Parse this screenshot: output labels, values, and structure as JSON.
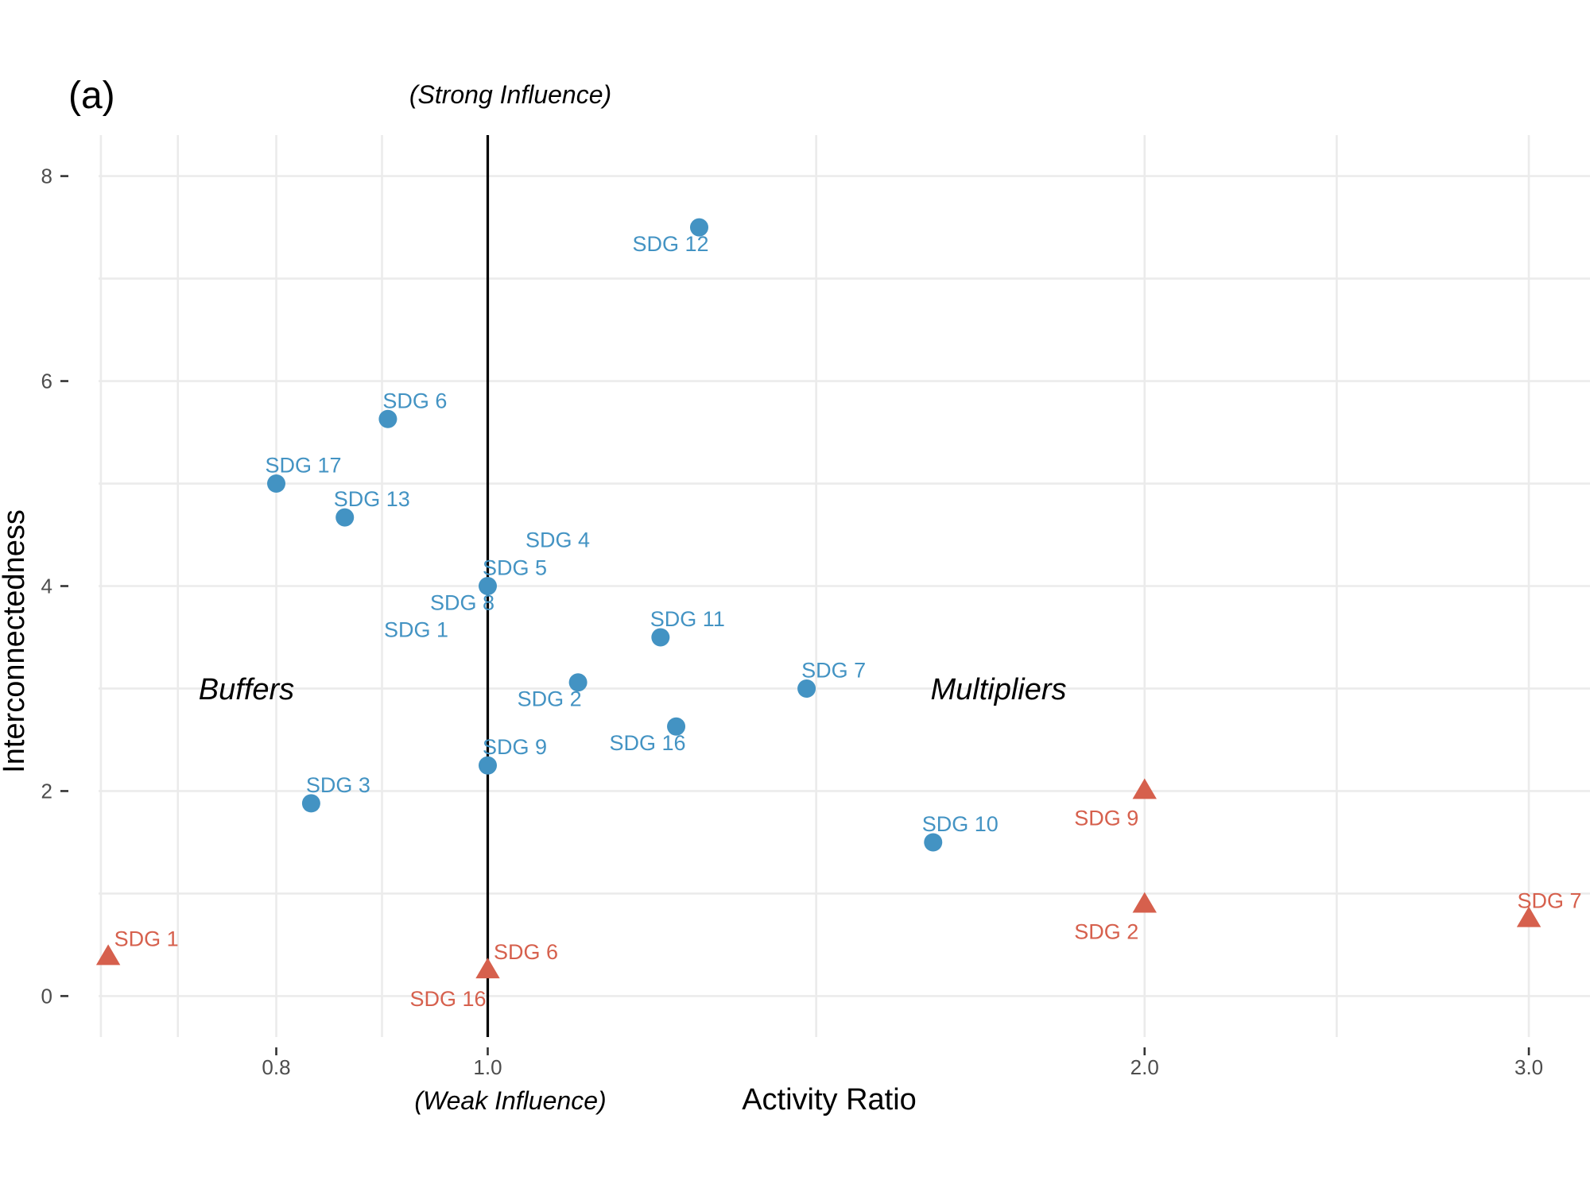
{
  "chart_data": {
    "type": "scatter",
    "panel_label": "(a)",
    "xlabel": "Activity Ratio",
    "ylabel": "Interconnectedness",
    "x_scale": "log",
    "xlim": [
      0.65,
      3.2
    ],
    "ylim": [
      -0.4,
      8.4
    ],
    "x_ticks": [
      0.8,
      1.0,
      2.0,
      3.0
    ],
    "x_tick_labels": [
      "0.8",
      "1.0",
      "2.0",
      "3.0"
    ],
    "y_ticks": [
      0,
      2,
      4,
      6,
      8
    ],
    "y_tick_labels": [
      "0",
      "2",
      "4",
      "6",
      "8"
    ],
    "grid": true,
    "reference_line_x": 1.0,
    "annotations": {
      "strong_influence": "(Strong Influence)",
      "weak_influence": "(Weak Influence)",
      "buffers": "Buffers",
      "multipliers": "Multipliers"
    },
    "colors": {
      "circle_series": "#4393c3",
      "triangle_series": "#d6604d"
    },
    "series": [
      {
        "marker": "circle",
        "color": "#4393c3",
        "points": [
          {
            "label": "SDG 12",
            "x": 1.25,
            "y": 7.5
          },
          {
            "label": "SDG 6",
            "x": 0.9,
            "y": 5.63
          },
          {
            "label": "SDG 17",
            "x": 0.8,
            "y": 5.0
          },
          {
            "label": "SDG 13",
            "x": 0.86,
            "y": 4.67
          },
          {
            "label": "SDG 4",
            "x": 1.0,
            "y": 4.0
          },
          {
            "label": "SDG 5",
            "x": 1.0,
            "y": 4.0
          },
          {
            "label": "SDG 8",
            "x": 1.0,
            "y": 4.0
          },
          {
            "label": "SDG 1",
            "x": 1.0,
            "y": 4.0
          },
          {
            "label": "SDG 11",
            "x": 1.2,
            "y": 3.5
          },
          {
            "label": "SDG 7",
            "x": 1.4,
            "y": 3.0
          },
          {
            "label": "SDG 2",
            "x": 1.1,
            "y": 3.06
          },
          {
            "label": "SDG 16",
            "x": 1.22,
            "y": 2.63
          },
          {
            "label": "SDG 9",
            "x": 1.0,
            "y": 2.25
          },
          {
            "label": "SDG 3",
            "x": 0.83,
            "y": 1.88
          },
          {
            "label": "SDG 10",
            "x": 1.6,
            "y": 1.5
          }
        ]
      },
      {
        "marker": "triangle",
        "color": "#d6604d",
        "points": [
          {
            "label": "SDG 9",
            "x": 2.0,
            "y": 2.0
          },
          {
            "label": "SDG 2",
            "x": 2.0,
            "y": 0.89
          },
          {
            "label": "SDG 7",
            "x": 3.0,
            "y": 0.75
          },
          {
            "label": "SDG 1",
            "x": 0.67,
            "y": 0.38
          },
          {
            "label": "SDG 6",
            "x": 1.0,
            "y": 0.25
          },
          {
            "label": "SDG 16",
            "x": 1.0,
            "y": 0.25
          }
        ]
      }
    ]
  }
}
